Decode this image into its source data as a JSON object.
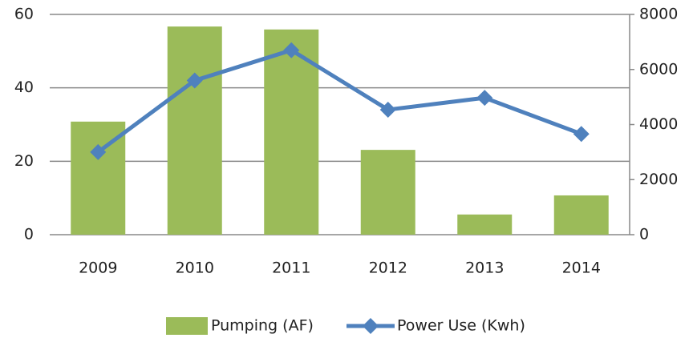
{
  "chart_data": {
    "type": "bar-line",
    "categories": [
      "2009",
      "2010",
      "2011",
      "2012",
      "2013",
      "2014"
    ],
    "series": [
      {
        "name": "Pumping (AF)",
        "type": "bar",
        "color": "#9bbb59",
        "values": [
          30.8,
          56.7,
          55.9,
          23.1,
          5.5,
          10.7
        ]
      },
      {
        "name": "Power Use (Kwh)",
        "type": "line",
        "axis": "y2",
        "color": "#4f81bd",
        "values": [
          3000,
          5600,
          6700,
          4540,
          4970,
          3660
        ]
      }
    ],
    "ylim": [
      0,
      60
    ],
    "yticks": [
      0,
      20,
      40,
      60
    ],
    "y2lim": [
      0,
      8000
    ],
    "y2ticks": [
      0,
      2000,
      4000,
      6000,
      8000
    ],
    "grid": true,
    "legend": "bottom"
  }
}
